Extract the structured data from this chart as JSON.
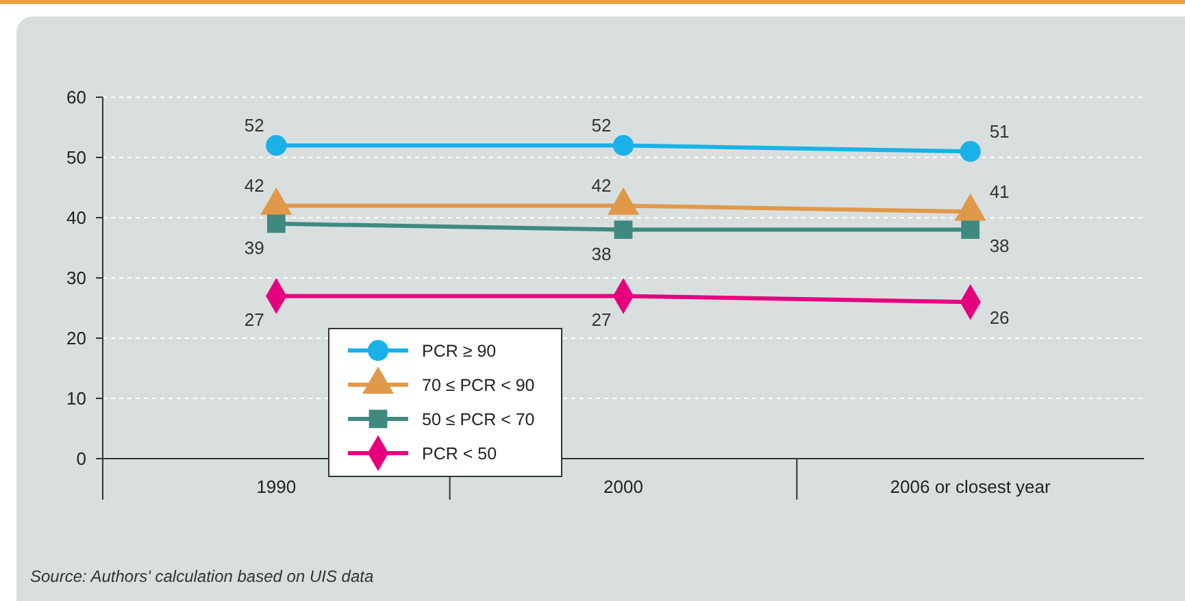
{
  "chart_data": {
    "type": "line",
    "categories": [
      "1990",
      "2000",
      "2006 or closest year"
    ],
    "series": [
      {
        "name": "PCR ≥ 90",
        "color": "#1ab0e8",
        "marker": "circle",
        "values": [
          52,
          52,
          51
        ]
      },
      {
        "name": "70 ≤ PCR < 90",
        "color": "#e0994a",
        "marker": "triangle",
        "values": [
          42,
          42,
          41
        ]
      },
      {
        "name": "50 ≤ PCR < 70",
        "color": "#3f8a80",
        "marker": "square",
        "values": [
          39,
          38,
          38
        ]
      },
      {
        "name": "PCR < 50",
        "color": "#e6007e",
        "marker": "diamond",
        "values": [
          27,
          27,
          26
        ]
      }
    ],
    "ylim": [
      0,
      60
    ],
    "yticks": [
      0,
      10,
      20,
      30,
      40,
      50,
      60
    ],
    "grid": "y",
    "legend": "bottom left",
    "data_labels": true,
    "annotations": [
      "Source: Authors' calculation based on UIS data"
    ]
  }
}
